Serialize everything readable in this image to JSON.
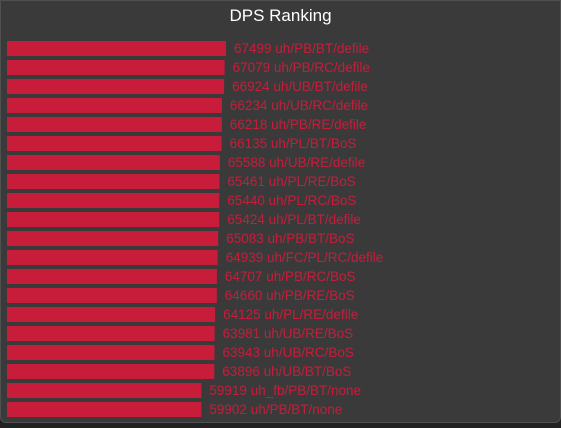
{
  "chart_data": {
    "type": "bar",
    "orientation": "horizontal",
    "title": "DPS Ranking",
    "bar_color": "#c71d3a",
    "categories": [
      "uh/PB/BT/defile",
      "uh/PB/RC/defile",
      "uh/UB/BT/defile",
      "uh/UB/RC/defile",
      "uh/PB/RE/defile",
      "uh/PL/BT/BoS",
      "uh/UB/RE/defile",
      "uh/PL/RE/BoS",
      "uh/PL/RC/BoS",
      "uh/PL/BT/defile",
      "uh/PB/BT/BoS",
      "uh/FC/PL/RC/defile",
      "uh/PB/RC/BoS",
      "uh/PB/RE/BoS",
      "uh/PL/RE/defile",
      "uh/UB/RE/BoS",
      "uh/UB/RC/BoS",
      "uh/UB/BT/BoS",
      "uh_fb/PB/BT/none",
      "uh/PB/BT/none"
    ],
    "values": [
      67499,
      67079,
      66924,
      66234,
      66218,
      66135,
      65588,
      65461,
      65440,
      65424,
      65083,
      64939,
      64707,
      64660,
      64125,
      63981,
      63943,
      63896,
      59919,
      59902
    ],
    "xlim": [
      0,
      67499
    ]
  }
}
